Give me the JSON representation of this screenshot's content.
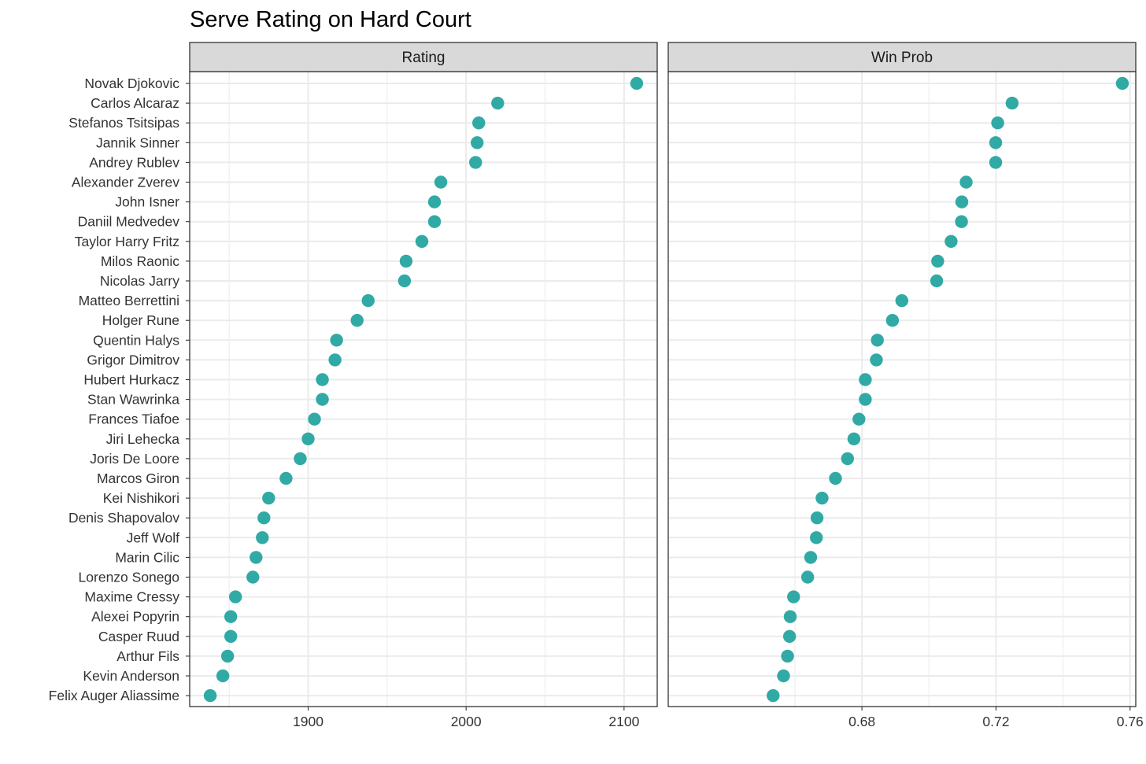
{
  "chart_data": {
    "type": "scatter",
    "title": "Serve Rating on Hard Court",
    "point_color": "#20A39E",
    "players": [
      "Novak Djokovic",
      "Carlos Alcaraz",
      "Stefanos Tsitsipas",
      "Jannik Sinner",
      "Andrey Rublev",
      "Alexander Zverev",
      "John Isner",
      "Daniil Medvedev",
      "Taylor Harry Fritz",
      "Milos Raonic",
      "Nicolas Jarry",
      "Matteo Berrettini",
      "Holger Rune",
      "Quentin Halys",
      "Grigor Dimitrov",
      "Hubert Hurkacz",
      "Stan Wawrinka",
      "Frances Tiafoe",
      "Jiri Lehecka",
      "Joris De Loore",
      "Marcos Giron",
      "Kei Nishikori",
      "Denis Shapovalov",
      "Jeff Wolf",
      "Marin Cilic",
      "Lorenzo Sonego",
      "Maxime Cressy",
      "Alexei Popyrin",
      "Casper Ruud",
      "Arthur Fils",
      "Kevin Anderson",
      "Felix Auger Aliassime"
    ],
    "panels": [
      {
        "strip": "Rating",
        "xlim": [
          1825,
          2121
        ],
        "xticks": [
          1900,
          2000,
          2100
        ],
        "xtick_labels": [
          "1900",
          "2000",
          "2100"
        ],
        "values": [
          2108,
          2020,
          2008,
          2007,
          2006,
          1984,
          1980,
          1980,
          1972,
          1962,
          1961,
          1938,
          1931,
          1918,
          1917,
          1909,
          1909,
          1904,
          1900,
          1895,
          1886,
          1875,
          1872,
          1871,
          1867,
          1865,
          1854,
          1851,
          1851,
          1849,
          1846,
          1838
        ]
      },
      {
        "strip": "Win Prob",
        "xlim": [
          0.6222,
          0.7617
        ],
        "xticks": [
          0.68,
          0.72,
          0.76
        ],
        "xtick_labels": [
          "0.68",
          "0.72",
          "0.76"
        ],
        "values": [
          0.7577,
          0.7248,
          0.7205,
          0.7199,
          0.7199,
          0.7111,
          0.7098,
          0.7097,
          0.7066,
          0.7026,
          0.7023,
          0.6919,
          0.6891,
          0.6846,
          0.6843,
          0.681,
          0.681,
          0.6791,
          0.6776,
          0.6757,
          0.6721,
          0.6681,
          0.6666,
          0.6664,
          0.6647,
          0.6638,
          0.6596,
          0.6586,
          0.6584,
          0.6578,
          0.6566,
          0.6535
        ]
      }
    ]
  }
}
